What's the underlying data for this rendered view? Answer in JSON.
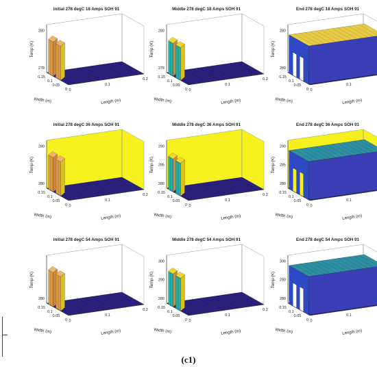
{
  "chart_data": {
    "type": "surface3d-grid",
    "panels": [
      {
        "title": "Initial 278 degC 18 Amps SOH 91",
        "zticks": [
          "280",
          "278"
        ],
        "bg": "white",
        "state": "initial"
      },
      {
        "title": "Middle 278 degC 18 Amps SOH 91",
        "zticks": [
          "280",
          "278"
        ],
        "bg": "white",
        "state": "middle"
      },
      {
        "title": "End 278 degC 18 Amps SOH 91",
        "zticks": [
          "280",
          "280"
        ],
        "bg": "white",
        "state": "end"
      },
      {
        "title": "Initial 278 degC 36 Amps SOH 91",
        "zticks": [
          "280",
          "280"
        ],
        "bg": "yellow",
        "state": "initial"
      },
      {
        "title": "Middle 278 degC 36 Amps SOH 91",
        "zticks": [
          "290",
          "285",
          "280"
        ],
        "bg": "yellow",
        "state": "middle"
      },
      {
        "title": "End 278 degC 36 Amps SOH 91",
        "zticks": [
          "290",
          "285",
          "280"
        ],
        "bg": "yellow",
        "state": "end"
      },
      {
        "title": "Initial 278 degC 54 Amps SOH 91",
        "zticks": [
          "280"
        ],
        "bg": "white",
        "state": "initial"
      },
      {
        "title": "Middle 278 degC 54 Amps SOH 91",
        "zticks": [
          "300",
          "290",
          "280"
        ],
        "bg": "white",
        "state": "middle"
      },
      {
        "title": "End 278 degC 54 Amps SOH 91",
        "zticks": [
          "300",
          "290",
          "280"
        ],
        "bg": "white",
        "state": "end"
      }
    ],
    "xlabel": "Length (m)",
    "ylabel": "Width (m)",
    "zlabel": "Temp (K)",
    "xticks": [
      "0",
      "0.1",
      "0.2"
    ],
    "yticks": [
      "0.15",
      "0.1",
      "0.05",
      "0"
    ],
    "colormap": [
      "#2a1f7a",
      "#2e3ba8",
      "#1f8fb8",
      "#2ab89a",
      "#a8c93a",
      "#f2d62a"
    ]
  },
  "caption": "(c1)"
}
